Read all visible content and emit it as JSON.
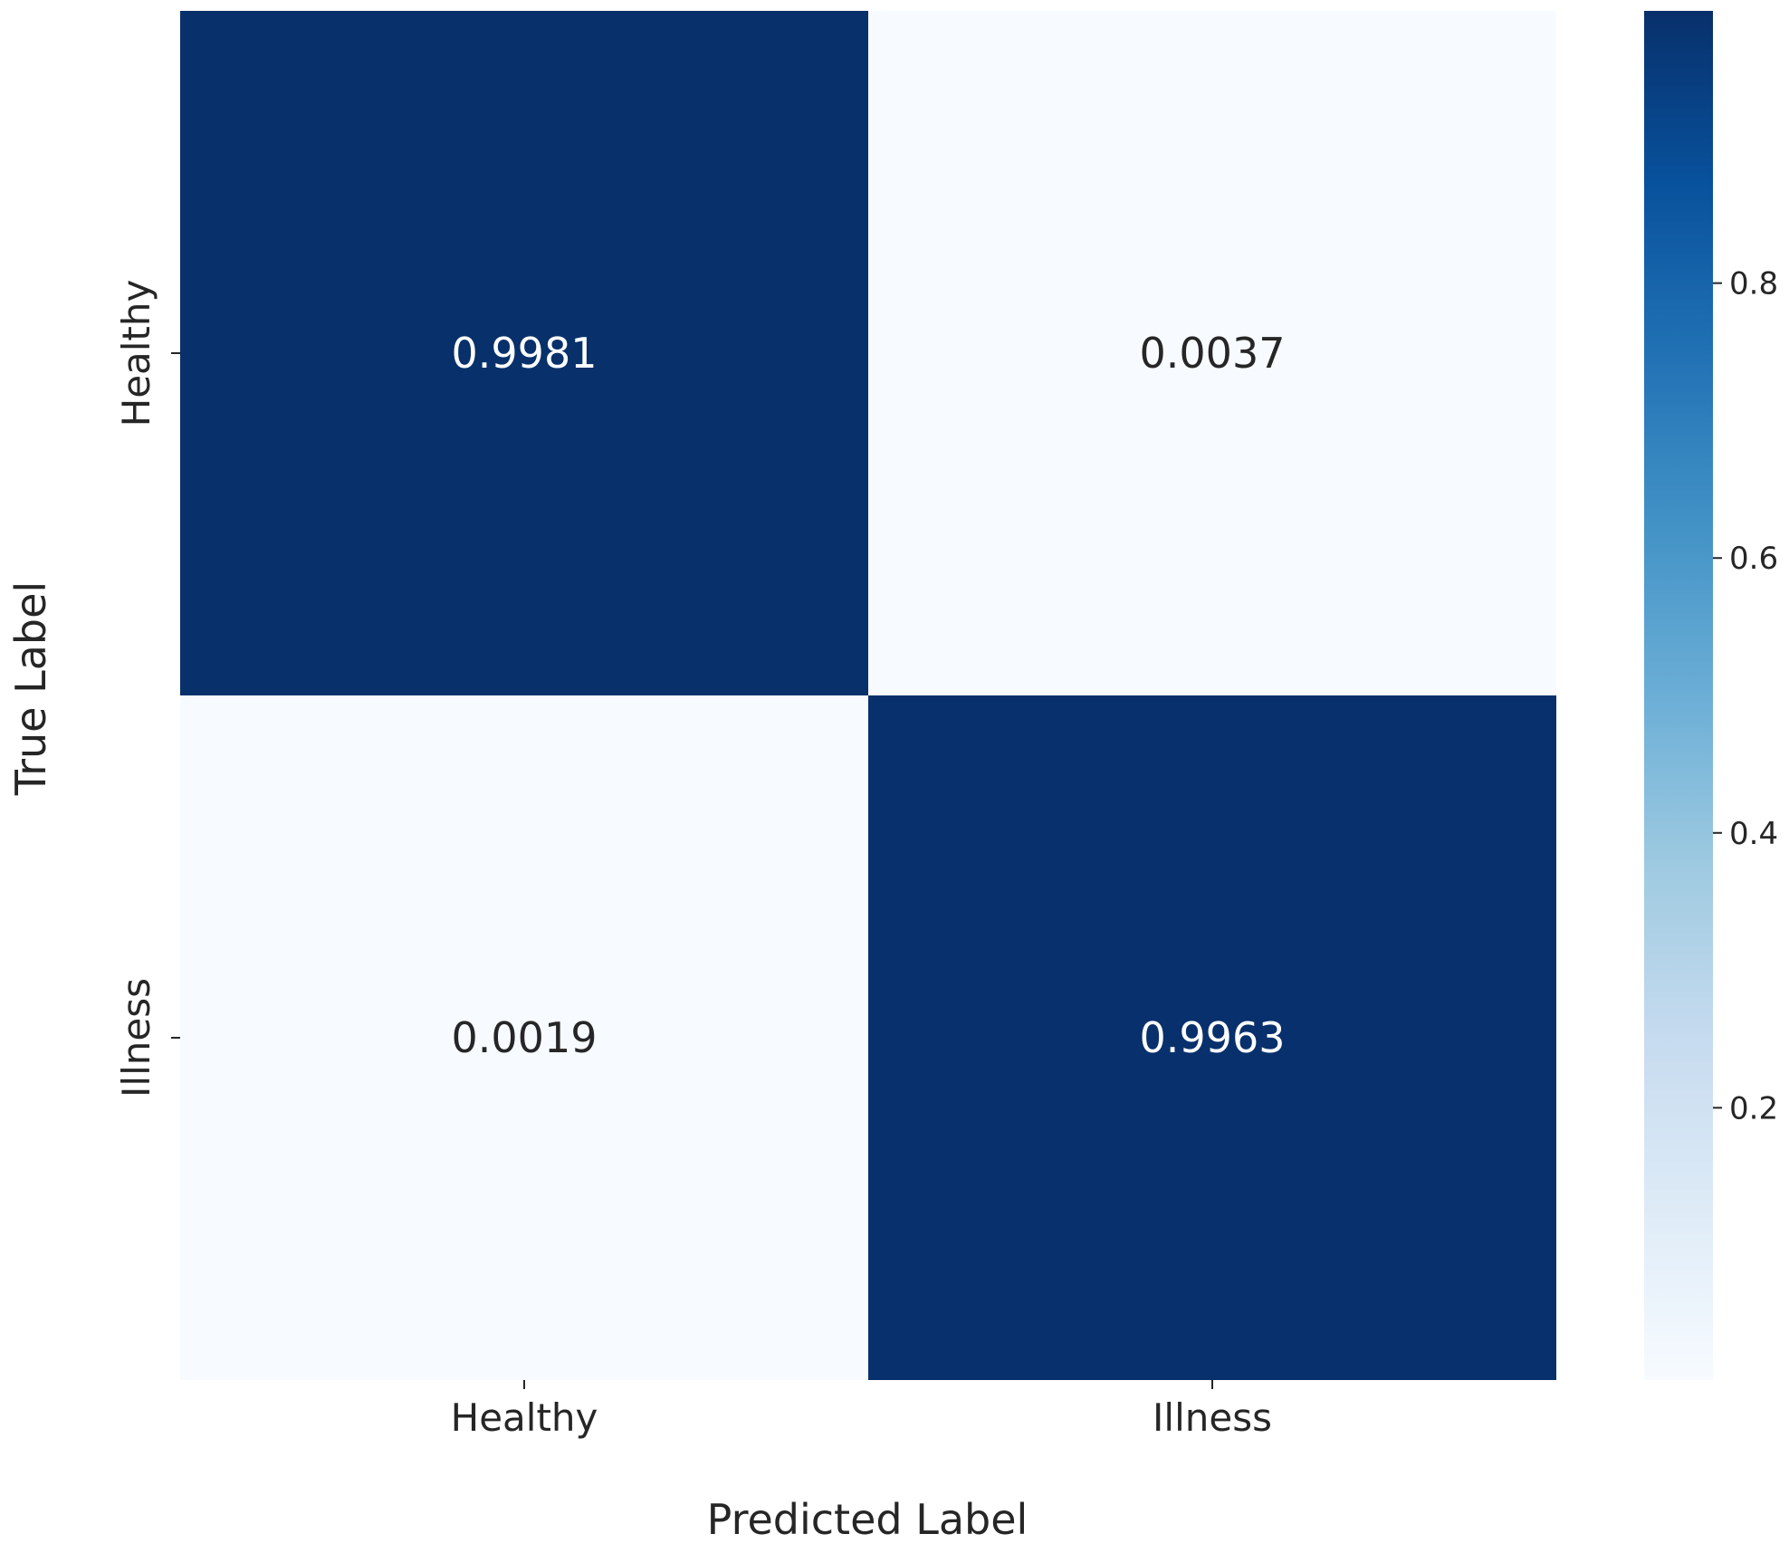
{
  "chart_data": {
    "type": "heatmap",
    "title": "",
    "xlabel": "Predicted Label",
    "ylabel": "True Label",
    "x_categories": [
      "Healthy",
      "Illness"
    ],
    "y_categories": [
      "Healthy",
      "Illness"
    ],
    "values": [
      [
        0.9981,
        0.0037
      ],
      [
        0.0019,
        0.9963
      ]
    ],
    "cell_labels": [
      [
        "0.9981",
        "0.0037"
      ],
      [
        "0.0019",
        "0.9963"
      ]
    ],
    "colormap": "Blues",
    "colors": {
      "low": "#f7fbff",
      "high": "#08306b",
      "text_on_dark": "#ffffff",
      "text_on_light": "#262626"
    },
    "colorbar": {
      "range": [
        0.0019,
        0.9981
      ],
      "ticks": [
        0.2,
        0.4,
        0.6,
        0.8
      ],
      "tick_labels": [
        "0.2",
        "0.4",
        "0.6",
        "0.8"
      ]
    }
  }
}
